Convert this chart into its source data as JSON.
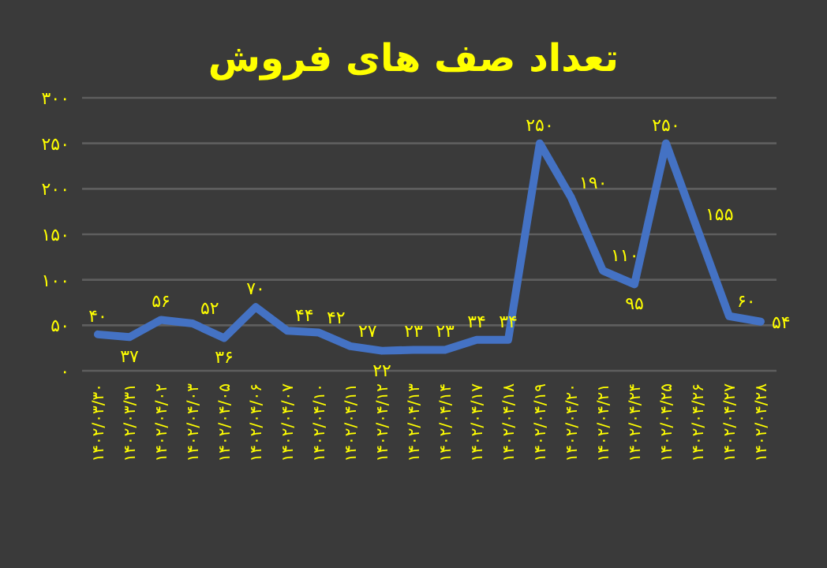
{
  "chart_data": {
    "type": "line",
    "title": "تعداد صف های فروش",
    "categories": [
      "۱۴۰۲/۰۳/۳۰",
      "۱۴۰۲/۰۳/۳۱",
      "۱۴۰۲/۰۴/۰۲",
      "۱۴۰۲/۰۴/۰۳",
      "۱۴۰۲/۰۴/۰۵",
      "۱۴۰۲/۰۴/۰۶",
      "۱۴۰۲/۰۴/۰۷",
      "۱۴۰۲/۰۴/۱۰",
      "۱۴۰۲/۰۴/۱۱",
      "۱۴۰۲/۰۴/۱۲",
      "۱۴۰۲/۰۴/۱۳",
      "۱۴۰۲/۰۴/۱۴",
      "۱۴۰۲/۰۴/۱۷",
      "۱۴۰۲/۰۴/۱۸",
      "۱۴۰۲/۰۴/۱۹",
      "۱۴۰۲/۰۴/۲۰",
      "۱۴۰۲/۰۴/۲۱",
      "۱۴۰۲/۰۴/۲۴",
      "۱۴۰۲/۰۴/۲۵",
      "۱۴۰۲/۰۴/۲۶",
      "۱۴۰۲/۰۴/۲۷",
      "۱۴۰۲/۰۴/۲۸"
    ],
    "values": [
      40,
      37,
      56,
      52,
      36,
      70,
      44,
      42,
      27,
      22,
      23,
      23,
      34,
      34,
      250,
      190,
      110,
      95,
      250,
      155,
      60,
      54
    ],
    "value_labels": [
      "۴۰",
      "۳۷",
      "۵۶",
      "۵۲",
      "۳۶",
      "۷۰",
      "۴۴",
      "۴۲",
      "۲۷",
      "۲۲",
      "۲۳",
      "۲۳",
      "۳۴",
      "۳۴",
      "۲۵۰",
      "۱۹۰",
      "۱۱۰",
      "۹۵",
      "۲۵۰",
      "۱۵۵",
      "۶۰",
      "۵۴"
    ],
    "color": "#4472c4",
    "ylim": [
      0,
      300
    ],
    "yticks": [
      {
        "value": 0,
        "label": "۰"
      },
      {
        "value": 50,
        "label": "۵۰"
      },
      {
        "value": 100,
        "label": "۱۰۰"
      },
      {
        "value": 150,
        "label": "۱۵۰"
      },
      {
        "value": 200,
        "label": "۲۰۰"
      },
      {
        "value": 250,
        "label": "۲۵۰"
      },
      {
        "value": 300,
        "label": "۳۰۰"
      }
    ],
    "grid": "y",
    "marker": "none",
    "line_style": "solid"
  }
}
